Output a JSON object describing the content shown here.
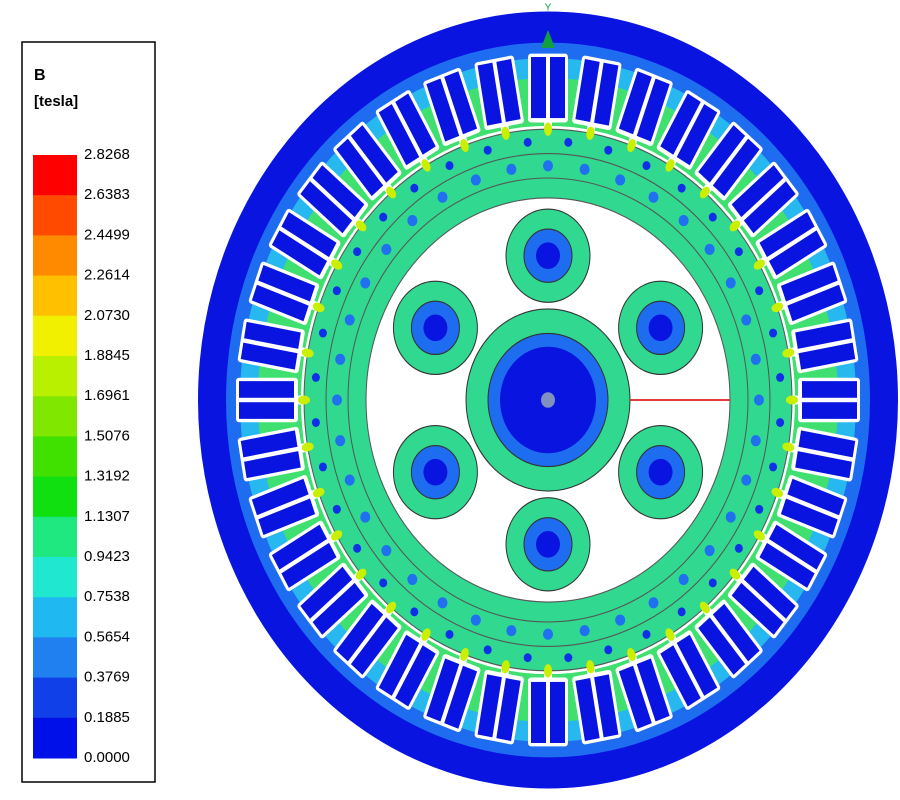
{
  "legend": {
    "title": "B",
    "unit": "[tesla]",
    "levels": [
      "2.8268",
      "2.6383",
      "2.4499",
      "2.2614",
      "2.0730",
      "1.8845",
      "1.6961",
      "1.5076",
      "1.3192",
      "1.1307",
      "0.9423",
      "0.7538",
      "0.5654",
      "0.3769",
      "0.1885",
      "0.0000"
    ],
    "colors": [
      "#ff0000",
      "#ff4a00",
      "#ff8a00",
      "#ffc000",
      "#f0f000",
      "#b8f000",
      "#80e800",
      "#40e000",
      "#10e010",
      "#20e880",
      "#20e8d0",
      "#20b8f0",
      "#2080f0",
      "#1040e8",
      "#0010e8"
    ]
  },
  "axis_label": "Y"
}
